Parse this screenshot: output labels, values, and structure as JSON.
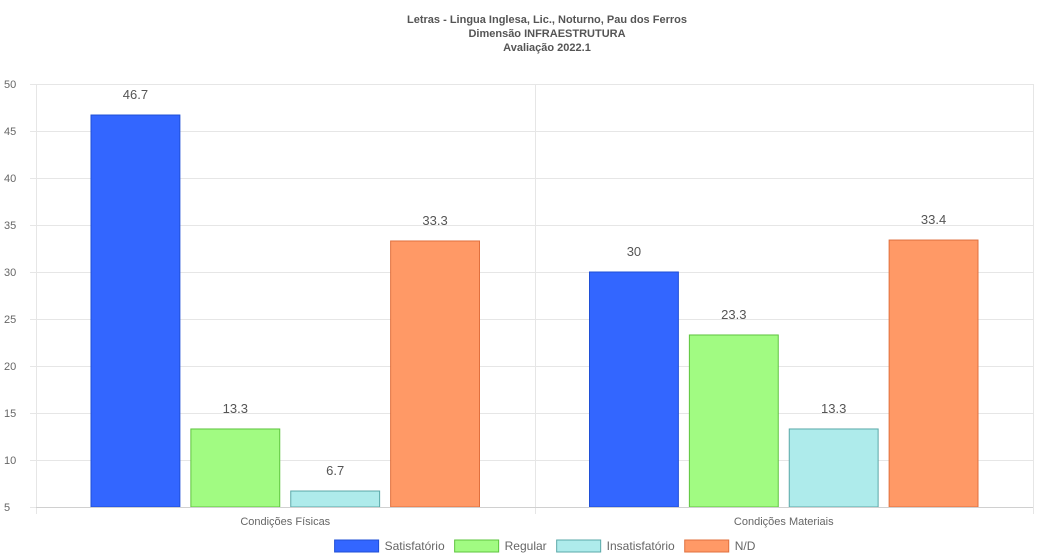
{
  "chart_data": {
    "type": "bar",
    "title": [
      "Letras - Lingua Inglesa, Lic., Noturno, Pau dos Ferros",
      "Dimensão INFRAESTRUTURA",
      "Avaliação 2022.1"
    ],
    "categories": [
      "Condições Físicas",
      "Condições Materiais"
    ],
    "series": [
      {
        "name": "Satisfatório",
        "values": [
          46.7,
          30
        ],
        "color": "#3366ff",
        "border": "#1f4fd6"
      },
      {
        "name": "Regular",
        "values": [
          13.3,
          23.3
        ],
        "color": "#a1fb82",
        "border": "#5ec43e"
      },
      {
        "name": "Insatisfatório",
        "values": [
          6.7,
          13.3
        ],
        "color": "#aeebeb",
        "border": "#5aa8a8"
      },
      {
        "name": "N/D",
        "values": [
          33.3,
          33.4
        ],
        "color": "#ff9966",
        "border": "#e0703e"
      }
    ],
    "data_labels": [
      [
        "46.7",
        "30"
      ],
      [
        "13.3",
        "23.3"
      ],
      [
        "6.7",
        "13.3"
      ],
      [
        "33.3",
        "33.4"
      ]
    ],
    "ylim": [
      5,
      50
    ],
    "yticks": [
      5,
      10,
      15,
      20,
      25,
      30,
      35,
      40,
      45,
      50
    ],
    "xlabel": "",
    "ylabel": "",
    "grid": true,
    "legend_position": "bottom"
  }
}
